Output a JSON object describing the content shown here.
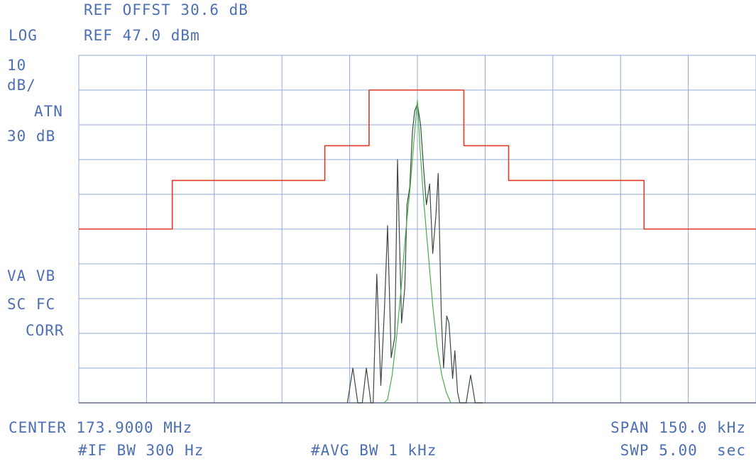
{
  "header": {
    "ref_offset": "REF OFFST 30.6 dB",
    "scale_mode": "LOG",
    "ref_level": "REF 47.0 dBm"
  },
  "left_panel": {
    "scale_value": "10",
    "scale_unit": "dB/",
    "atten_label": "ATN",
    "atten_value": "30 dB",
    "flags_1": "VA VB",
    "flags_2": "SC FC",
    "flags_3": "CORR"
  },
  "footer": {
    "center": "CENTER 173.9000 MHz",
    "span": "SPAN 150.0 kHz",
    "if_bw": "#IF BW 300 Hz",
    "avg_bw": "#AVG BW 1 kHz",
    "sweep": "SWP 5.00  sec"
  },
  "chart_data": {
    "type": "line",
    "x_unit": "kHz offset from center",
    "y_unit": "dBm",
    "xlim": [
      -75,
      75
    ],
    "ylim": [
      -53,
      47
    ],
    "x_divisions": 10,
    "y_divisions": 10,
    "grid": true,
    "colors": {
      "grid": "#8fa8d6",
      "mask": "#e03a24",
      "trace_dark": "#3c4a3c",
      "trace_green": "#45b04a",
      "text": "#4d6fb3"
    },
    "series": [
      {
        "role": "mask",
        "points": [
          [
            -75,
            -3
          ],
          [
            -54.3,
            -3
          ],
          [
            -54.3,
            11
          ],
          [
            -20.5,
            11
          ],
          [
            -20.5,
            21
          ],
          [
            -10.7,
            21
          ],
          [
            -10.7,
            37
          ],
          [
            10.3,
            37
          ],
          [
            10.3,
            21
          ],
          [
            20.2,
            21
          ],
          [
            20.2,
            11
          ],
          [
            50.2,
            11
          ],
          [
            50.2,
            -3
          ],
          [
            75,
            -3
          ]
        ]
      },
      {
        "role": "trace_dark",
        "points": [
          [
            -15.5,
            -53
          ],
          [
            -14.3,
            -43
          ],
          [
            -13.2,
            -53
          ],
          [
            -12.2,
            -53
          ],
          [
            -11.3,
            -43
          ],
          [
            -10.3,
            -53
          ],
          [
            -9.8,
            -53
          ],
          [
            -9.0,
            -16
          ],
          [
            -8.1,
            -48
          ],
          [
            -7.3,
            -26
          ],
          [
            -6.6,
            -2
          ],
          [
            -5.8,
            -40
          ],
          [
            -5.0,
            -34
          ],
          [
            -4.4,
            17
          ],
          [
            -3.5,
            -30
          ],
          [
            -2.8,
            -20
          ],
          [
            -2.3,
            4
          ],
          [
            -1.7,
            9
          ],
          [
            -1.1,
            25
          ],
          [
            -0.6,
            31
          ],
          [
            0.0,
            33
          ],
          [
            0.7,
            27
          ],
          [
            1.4,
            14
          ],
          [
            2.0,
            4
          ],
          [
            2.7,
            10
          ],
          [
            3.4,
            -10
          ],
          [
            4.1,
            1
          ],
          [
            4.6,
            13
          ],
          [
            5.3,
            -28
          ],
          [
            5.8,
            -43
          ],
          [
            6.5,
            -28
          ],
          [
            7.0,
            -30
          ],
          [
            7.5,
            -40
          ],
          [
            7.8,
            -46
          ],
          [
            8.3,
            -38
          ],
          [
            8.9,
            -50
          ],
          [
            9.4,
            -53
          ],
          [
            9.8,
            -53
          ],
          [
            10.8,
            -53
          ],
          [
            11.8,
            -45
          ],
          [
            12.8,
            -53
          ],
          [
            13.6,
            -53
          ],
          [
            14.5,
            -53
          ]
        ]
      },
      {
        "role": "trace_green",
        "points": [
          [
            -7.4,
            -53
          ],
          [
            -6.6,
            -52
          ],
          [
            -5.6,
            -45
          ],
          [
            -4.6,
            -34
          ],
          [
            -3.6,
            -20
          ],
          [
            -2.6,
            -4
          ],
          [
            -1.6,
            9
          ],
          [
            -0.8,
            22
          ],
          [
            0.0,
            34
          ],
          [
            0.6,
            20
          ],
          [
            1.4,
            5
          ],
          [
            2.4,
            -10
          ],
          [
            3.4,
            -25
          ],
          [
            4.4,
            -37
          ],
          [
            5.4,
            -45
          ],
          [
            6.4,
            -50
          ],
          [
            7.4,
            -53
          ]
        ]
      }
    ]
  }
}
